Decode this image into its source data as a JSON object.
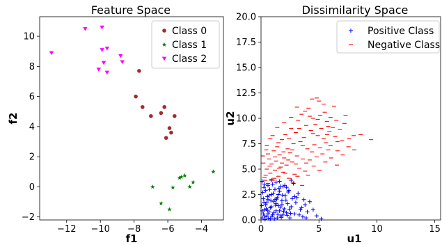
{
  "chart_data": [
    {
      "type": "scatter",
      "title": "Feature Space",
      "xlabel": "f1",
      "ylabel": "f2",
      "xlim": [
        -13.6,
        -2.7
      ],
      "ylim": [
        -2.2,
        11.3
      ],
      "xticks": [
        -12,
        -10,
        -8,
        -6,
        -4
      ],
      "xtick_labels": [
        "−12",
        "−10",
        "−8",
        "−6",
        "−4"
      ],
      "yticks": [
        -2,
        0,
        2,
        4,
        6,
        8,
        10
      ],
      "ytick_labels": [
        "−2",
        "0",
        "2",
        "4",
        "6",
        "8",
        "10"
      ],
      "grid": false,
      "legend_position": "top-right",
      "series": [
        {
          "name": "Class 0",
          "marker": "circle",
          "color": "#a52a2a",
          "points": [
            [
              -7.7,
              7.7
            ],
            [
              -7.9,
              6.0
            ],
            [
              -7.5,
              5.3
            ],
            [
              -7.0,
              4.7
            ],
            [
              -6.4,
              4.9
            ],
            [
              -6.2,
              5.3
            ],
            [
              -5.6,
              4.7
            ],
            [
              -5.9,
              3.9
            ],
            [
              -5.8,
              3.6
            ],
            [
              -6.1,
              3.25
            ]
          ]
        },
        {
          "name": "Class 1",
          "marker": "star",
          "color": "#008000",
          "points": [
            [
              -6.9,
              0.0
            ],
            [
              -6.4,
              -1.1
            ],
            [
              -5.9,
              -1.5
            ],
            [
              -5.7,
              -0.05
            ],
            [
              -5.3,
              0.6
            ],
            [
              -5.2,
              0.65
            ],
            [
              -5.0,
              0.75
            ],
            [
              -4.7,
              0.0
            ],
            [
              -4.5,
              0.3
            ],
            [
              -3.3,
              1.0
            ]
          ]
        },
        {
          "name": "Class 2",
          "marker": "triangle-down",
          "color": "#ff00ff",
          "points": [
            [
              -12.9,
              8.9
            ],
            [
              -10.9,
              10.5
            ],
            [
              -9.9,
              10.6
            ],
            [
              -9.9,
              9.1
            ],
            [
              -9.6,
              9.2
            ],
            [
              -8.8,
              8.7
            ],
            [
              -8.7,
              8.3
            ],
            [
              -9.8,
              8.25
            ],
            [
              -10.1,
              7.8
            ],
            [
              -9.6,
              7.6
            ]
          ]
        }
      ]
    },
    {
      "type": "scatter",
      "title": "Dissimilarity Space",
      "xlabel": "u1",
      "ylabel": "u2",
      "xlim": [
        0,
        15.5
      ],
      "ylim": [
        0,
        20
      ],
      "xticks": [
        0,
        5,
        10,
        15
      ],
      "xtick_labels": [
        "0",
        "5",
        "10",
        "15"
      ],
      "yticks": [
        0,
        2.5,
        5,
        7.5,
        10,
        12.5,
        15,
        17.5,
        20
      ],
      "ytick_labels": [
        "0.0",
        "2.5",
        "5.0",
        "7.5",
        "10.0",
        "12.5",
        "15.0",
        "17.5",
        "20.0"
      ],
      "grid": false,
      "legend_position": "top-right",
      "series": [
        {
          "name": "Positive Class",
          "marker": "plus",
          "color": "#0000ff",
          "points": [
            [
              0.1,
              0.2
            ],
            [
              0.2,
              0.6
            ],
            [
              0.3,
              1.0
            ],
            [
              0.4,
              1.5
            ],
            [
              0.5,
              0.3
            ],
            [
              0.6,
              2.0
            ],
            [
              0.7,
              0.8
            ],
            [
              0.8,
              1.2
            ],
            [
              0.9,
              2.5
            ],
            [
              1.0,
              0.5
            ],
            [
              1.1,
              1.8
            ],
            [
              1.2,
              3.0
            ],
            [
              1.3,
              0.9
            ],
            [
              1.4,
              2.2
            ],
            [
              1.5,
              1.4
            ],
            [
              1.6,
              2.8
            ],
            [
              1.7,
              0.4
            ],
            [
              1.8,
              1.9
            ],
            [
              1.9,
              3.3
            ],
            [
              2.0,
              1.1
            ],
            [
              2.1,
              2.4
            ],
            [
              2.2,
              0.7
            ],
            [
              2.3,
              1.6
            ],
            [
              2.4,
              2.9
            ],
            [
              2.5,
              0.2
            ],
            [
              2.6,
              1.3
            ],
            [
              2.7,
              2.1
            ],
            [
              2.8,
              3.6
            ],
            [
              2.9,
              0.6
            ],
            [
              3.0,
              1.7
            ],
            [
              3.2,
              2.6
            ],
            [
              3.4,
              1.0
            ],
            [
              3.6,
              0.3
            ],
            [
              3.8,
              1.5
            ],
            [
              4.0,
              0.8
            ],
            [
              0.15,
              2.7
            ],
            [
              0.25,
              3.2
            ],
            [
              0.35,
              0.05
            ],
            [
              0.45,
              1.1
            ],
            [
              0.55,
              2.3
            ],
            [
              0.65,
              0.15
            ],
            [
              0.75,
              3.0
            ],
            [
              0.85,
              1.9
            ],
            [
              0.95,
              0.35
            ],
            [
              1.05,
              2.6
            ],
            [
              1.15,
              0.1
            ],
            [
              1.25,
              1.45
            ],
            [
              1.35,
              2.05
            ],
            [
              1.45,
              0.55
            ],
            [
              1.55,
              3.1
            ],
            [
              1.65,
              1.25
            ],
            [
              1.75,
              0.25
            ],
            [
              1.85,
              2.45
            ],
            [
              1.95,
              0.85
            ],
            [
              2.05,
              3.4
            ],
            [
              2.15,
              1.95
            ],
            [
              2.25,
              0.45
            ],
            [
              2.35,
              2.75
            ],
            [
              2.45,
              1.05
            ],
            [
              2.55,
              0.65
            ],
            [
              0.05,
              1.4
            ],
            [
              0.1,
              0.9
            ],
            [
              0.2,
              2.1
            ],
            [
              0.3,
              0.4
            ],
            [
              0.4,
              2.9
            ],
            [
              0.5,
              1.7
            ],
            [
              0.6,
              0.6
            ],
            [
              0.7,
              2.4
            ],
            [
              0.8,
              0.1
            ],
            [
              0.9,
              1.3
            ],
            [
              1.0,
              3.5
            ],
            [
              1.1,
              0.7
            ],
            [
              1.2,
              2.0
            ],
            [
              1.3,
              1.6
            ],
            [
              1.4,
              0.2
            ],
            [
              1.5,
              2.5
            ],
            [
              1.6,
              0.9
            ],
            [
              1.7,
              3.3
            ],
            [
              1.8,
              1.5
            ],
            [
              1.9,
              0.5
            ],
            [
              3.1,
              2.2
            ],
            [
              3.3,
              0.5
            ],
            [
              3.5,
              1.2
            ],
            [
              3.7,
              2.0
            ],
            [
              2.9,
              2.3
            ],
            [
              3.9,
              0.2
            ],
            [
              4.2,
              1.8
            ],
            [
              4.5,
              1.0
            ],
            [
              4.8,
              0.4
            ],
            [
              5.2,
              0.1
            ],
            [
              0.1,
              3.8
            ],
            [
              0.3,
              3.5
            ],
            [
              0.6,
              3.4
            ],
            [
              0.9,
              3.9
            ],
            [
              1.3,
              3.7
            ],
            [
              1.6,
              3.8
            ],
            [
              2.2,
              3.2
            ],
            [
              2.6,
              3.9
            ],
            [
              0.25,
              1.75
            ],
            [
              0.55,
              0.95
            ]
          ]
        },
        {
          "name": "Negative Class",
          "marker": "hline",
          "color": "#ff0000",
          "points": [
            [
              0.3,
              4.2
            ],
            [
              0.5,
              5.0
            ],
            [
              0.6,
              3.6
            ],
            [
              0.7,
              6.0
            ],
            [
              0.8,
              4.6
            ],
            [
              0.9,
              5.5
            ],
            [
              1.0,
              3.9
            ],
            [
              1.1,
              6.8
            ],
            [
              1.2,
              4.9
            ],
            [
              1.3,
              5.8
            ],
            [
              1.4,
              7.2
            ],
            [
              1.5,
              4.3
            ],
            [
              1.6,
              6.4
            ],
            [
              1.7,
              5.2
            ],
            [
              1.8,
              7.9
            ],
            [
              1.9,
              4.7
            ],
            [
              2.0,
              6.1
            ],
            [
              2.1,
              8.4
            ],
            [
              2.2,
              5.4
            ],
            [
              2.3,
              7.0
            ],
            [
              2.4,
              4.1
            ],
            [
              2.5,
              6.6
            ],
            [
              2.6,
              9.0
            ],
            [
              2.7,
              5.7
            ],
            [
              2.8,
              7.5
            ],
            [
              2.9,
              4.5
            ],
            [
              3.0,
              8.6
            ],
            [
              3.1,
              6.3
            ],
            [
              3.2,
              9.8
            ],
            [
              3.3,
              5.1
            ],
            [
              3.4,
              7.7
            ],
            [
              3.5,
              10.4
            ],
            [
              3.6,
              6.0
            ],
            [
              3.7,
              8.1
            ],
            [
              3.8,
              4.8
            ],
            [
              3.9,
              9.3
            ],
            [
              4.0,
              7.0
            ],
            [
              4.1,
              11.0
            ],
            [
              4.2,
              5.9
            ],
            [
              4.3,
              8.8
            ],
            [
              4.4,
              6.7
            ],
            [
              4.5,
              10.0
            ],
            [
              4.6,
              7.4
            ],
            [
              4.7,
              9.4
            ],
            [
              4.8,
              6.2
            ],
            [
              4.9,
              8.3
            ],
            [
              5.0,
              11.7
            ],
            [
              5.1,
              7.1
            ],
            [
              5.2,
              9.0
            ],
            [
              5.3,
              6.5
            ],
            [
              5.4,
              8.0
            ],
            [
              5.5,
              10.6
            ],
            [
              5.6,
              7.6
            ],
            [
              5.7,
              9.7
            ],
            [
              5.8,
              6.9
            ],
            [
              5.9,
              8.7
            ],
            [
              6.0,
              7.3
            ],
            [
              6.2,
              9.1
            ],
            [
              6.4,
              8.2
            ],
            [
              6.6,
              6.8
            ],
            [
              6.8,
              8.9
            ],
            [
              7.0,
              7.8
            ],
            [
              7.2,
              9.5
            ],
            [
              7.6,
              8.0
            ],
            [
              8.0,
              8.3
            ],
            [
              8.6,
              8.4
            ],
            [
              9.5,
              7.9
            ],
            [
              0.2,
              5.6
            ],
            [
              0.4,
              4.4
            ],
            [
              0.6,
              6.5
            ],
            [
              0.9,
              4.0
            ],
            [
              1.2,
              6.2
            ],
            [
              1.5,
              7.6
            ],
            [
              1.8,
              5.6
            ],
            [
              2.1,
              4.6
            ],
            [
              2.4,
              8.0
            ],
            [
              2.7,
              6.9
            ],
            [
              3.0,
              5.5
            ],
            [
              3.3,
              9.0
            ],
            [
              3.6,
              7.3
            ],
            [
              3.9,
              5.6
            ],
            [
              4.2,
              10.2
            ],
            [
              4.5,
              8.5
            ],
            [
              4.8,
              12.0
            ],
            [
              5.1,
              10.3
            ],
            [
              5.4,
              11.4
            ],
            [
              5.7,
              8.4
            ],
            [
              6.0,
              10.1
            ],
            [
              6.3,
              11.2
            ],
            [
              6.6,
              7.7
            ],
            [
              0.35,
              3.9
            ],
            [
              0.75,
              5.3
            ],
            [
              1.15,
              4.1
            ],
            [
              1.55,
              5.1
            ],
            [
              1.95,
              6.7
            ],
            [
              2.35,
              5.9
            ],
            [
              2.75,
              3.7
            ],
            [
              3.15,
              4.3
            ],
            [
              3.55,
              3.4
            ],
            [
              4.05,
              4.4
            ],
            [
              4.55,
              5.3
            ],
            [
              5.05,
              4.9
            ],
            [
              5.55,
              5.7
            ],
            [
              6.05,
              6.1
            ],
            [
              6.55,
              5.4
            ],
            [
              7.05,
              6.4
            ],
            [
              7.55,
              7.2
            ],
            [
              8.05,
              6.9
            ],
            [
              1.0,
              8.3
            ],
            [
              1.4,
              9.1
            ],
            [
              2.0,
              9.6
            ],
            [
              2.6,
              10.1
            ],
            [
              3.1,
              11.1
            ],
            [
              3.8,
              10.7
            ],
            [
              4.4,
              11.9
            ],
            [
              4.9,
              9.9
            ],
            [
              5.8,
              9.2
            ],
            [
              6.5,
              9.8
            ],
            [
              7.3,
              10.3
            ],
            [
              0.5,
              7.3
            ],
            [
              0.8,
              8.0
            ],
            [
              0.15,
              6.3
            ],
            [
              0.45,
              6.9
            ]
          ]
        }
      ]
    }
  ]
}
